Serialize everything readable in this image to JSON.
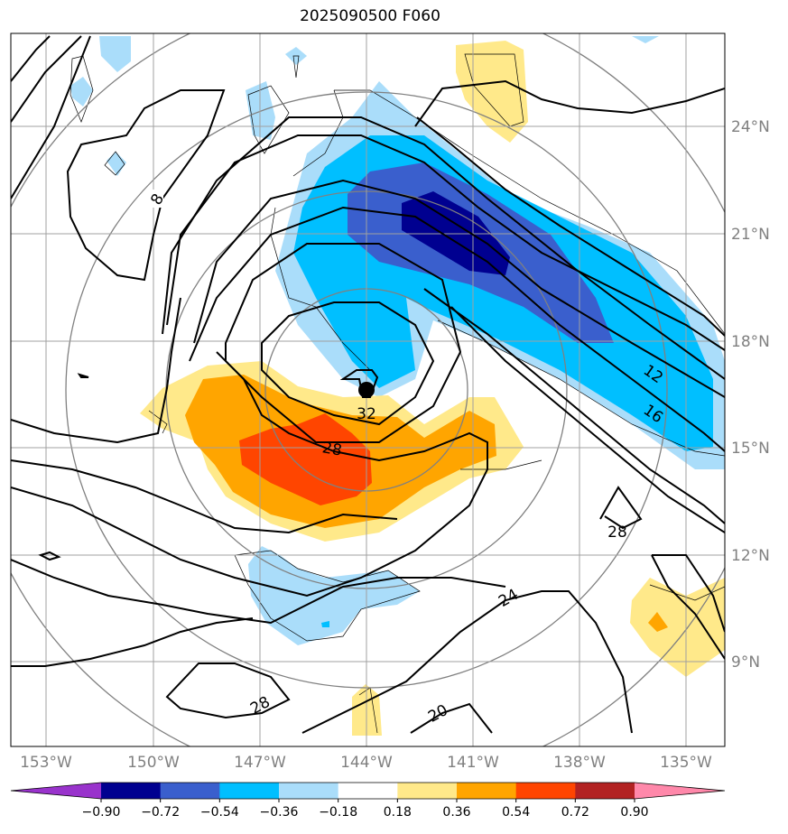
{
  "title": "2025090500 F060",
  "lon_labels": [
    "153°W",
    "150°W",
    "147°W",
    "144°W",
    "141°W",
    "138°W",
    "135°W"
  ],
  "lat_labels": [
    "24°N",
    "21°N",
    "18°N",
    "15°N",
    "12°N",
    "9°N"
  ],
  "contour_labels": [
    "8",
    "12",
    "16",
    "32",
    "28",
    "28",
    "24",
    "28",
    "20"
  ],
  "colorbar": {
    "ticks": [
      "−0.90",
      "−0.72",
      "−0.54",
      "−0.36",
      "−0.18",
      "0.18",
      "0.36",
      "0.54",
      "0.72",
      "0.90"
    ],
    "colors": [
      "#9933cc",
      "#000090",
      "#3a5fcd",
      "#00bfff",
      "#aaddfa",
      "#ffffff",
      "#ffe98a",
      "#ffa500",
      "#ff4500",
      "#b22222",
      "#ff88aa"
    ]
  },
  "storm_center": {
    "lon": -144.0,
    "lat": 16.6
  },
  "colors": {
    "grid": "#a0a0a0",
    "range_rings": "#808080",
    "contours": "#000000"
  }
}
